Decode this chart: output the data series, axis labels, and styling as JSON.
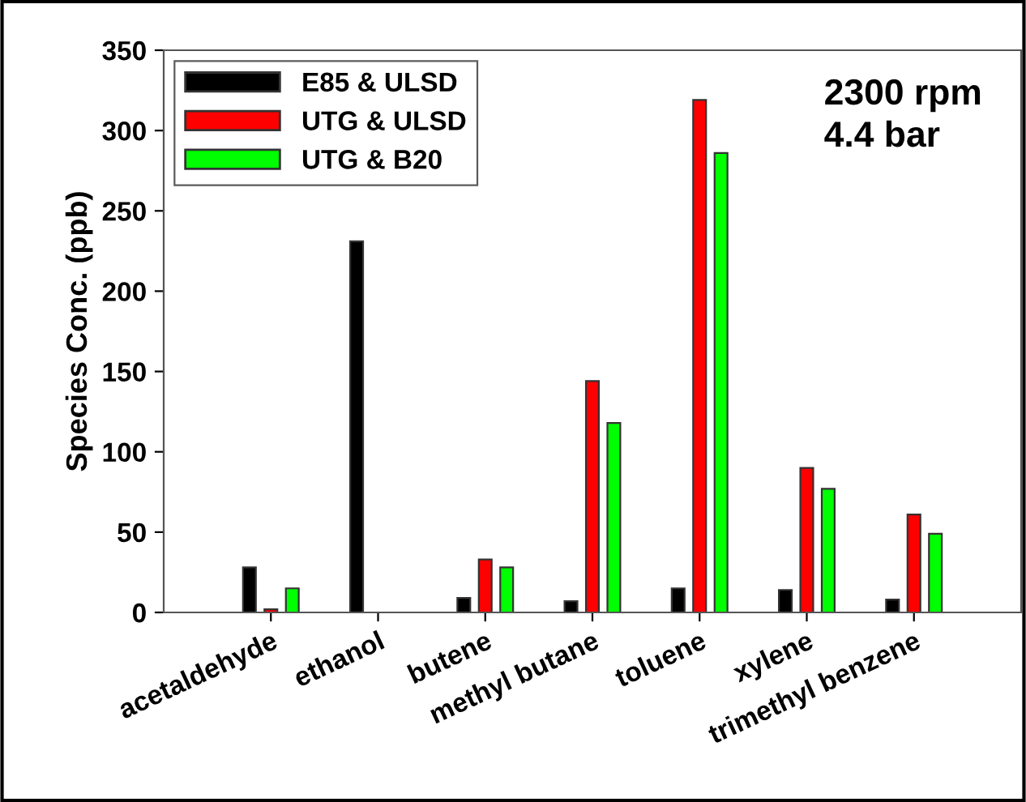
{
  "chart_data": {
    "type": "bar",
    "ylabel": "Species Conc. (ppb)",
    "categories": [
      "acetaldehyde",
      "ethanol",
      "butene",
      "methyl butane",
      "toluene",
      "xylene",
      "trimethyl benzene"
    ],
    "series": [
      {
        "name": "E85 & ULSD",
        "color": "#000000",
        "values": [
          28,
          231,
          9,
          7,
          15,
          14,
          8
        ]
      },
      {
        "name": "UTG & ULSD",
        "color": "#ff0000",
        "values": [
          2,
          null,
          33,
          144,
          319,
          90,
          61
        ]
      },
      {
        "name": "UTG & B20",
        "color": "#00ff00",
        "values": [
          15,
          null,
          28,
          118,
          286,
          77,
          49
        ]
      }
    ],
    "ylim": [
      0,
      350
    ],
    "yticks": [
      0,
      50,
      100,
      150,
      200,
      250,
      300,
      350
    ],
    "annotations": [
      "2300 rpm",
      "4.4 bar"
    ],
    "legend": "top left",
    "grid": false
  }
}
